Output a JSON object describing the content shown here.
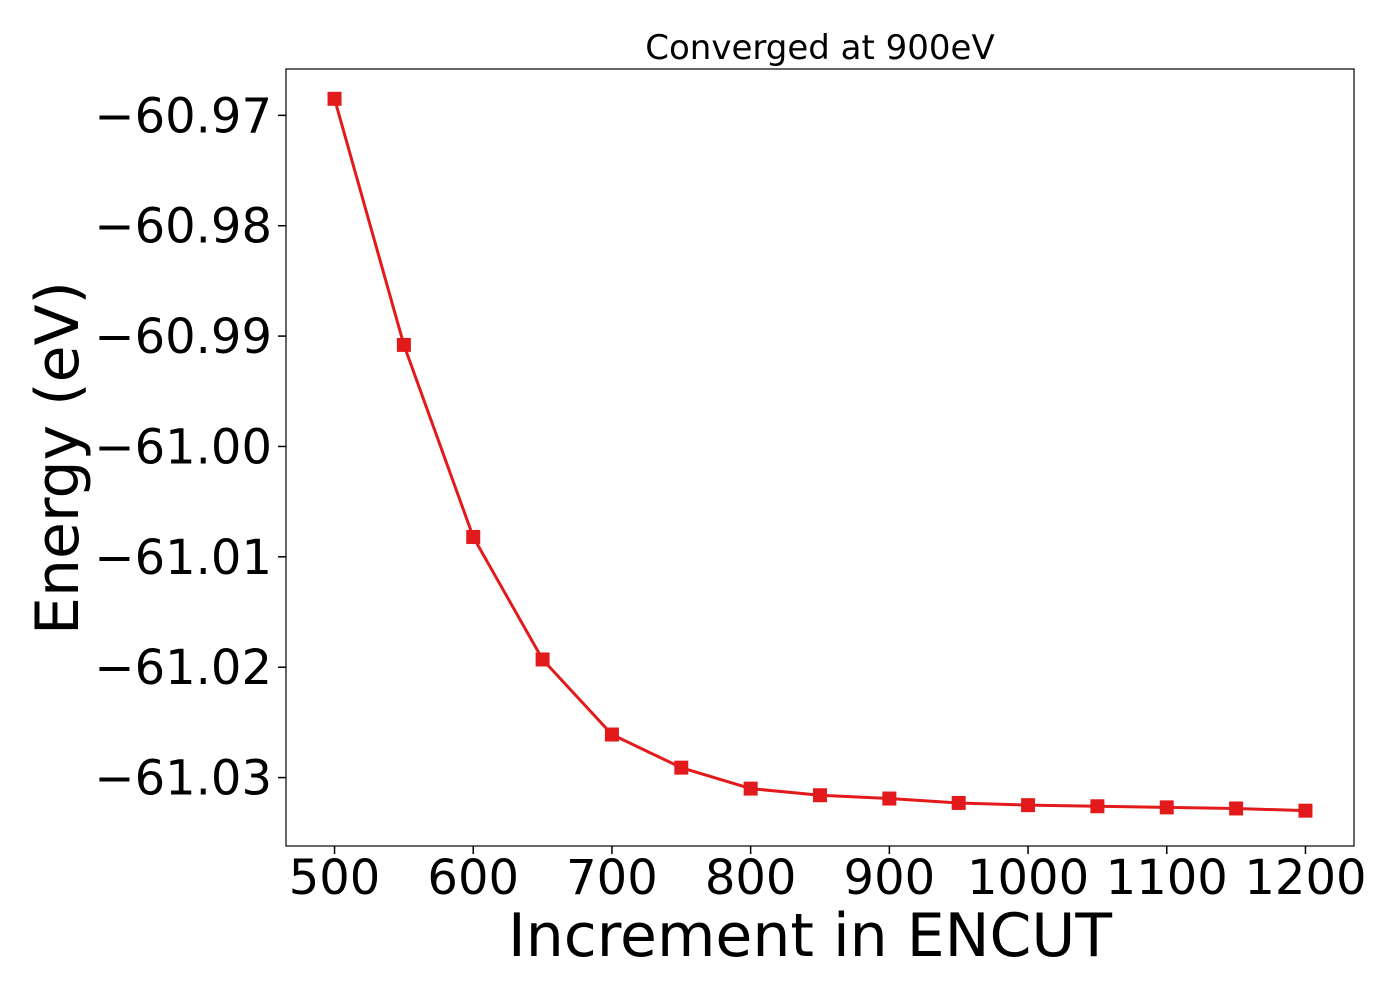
{
  "chart_data": {
    "type": "line",
    "title": "Converged at 900eV",
    "xlabel": "Increment in ENCUT",
    "ylabel": "Energy (eV)",
    "xlim": [
      465,
      1235
    ],
    "ylim": [
      -61.0362,
      -60.9658
    ],
    "x_ticks": [
      500,
      600,
      700,
      800,
      900,
      1000,
      1100,
      1200
    ],
    "x_tick_labels": [
      "500",
      "600",
      "700",
      "800",
      "900",
      "1000",
      "1100",
      "1200"
    ],
    "y_ticks": [
      -60.97,
      -60.98,
      -60.99,
      -61.0,
      -61.01,
      -61.02,
      -61.03
    ],
    "y_tick_labels": [
      "−60.97",
      "−60.98",
      "−60.99",
      "−61.00",
      "−61.01",
      "−61.02",
      "−61.03"
    ],
    "grid": false,
    "series": [
      {
        "color": "#e31a1c",
        "marker": "square",
        "x": [
          500,
          550,
          600,
          650,
          700,
          750,
          800,
          850,
          900,
          950,
          1000,
          1050,
          1100,
          1150,
          1200
        ],
        "y": [
          -60.9685,
          -60.9908,
          -61.0082,
          -61.0193,
          -61.0261,
          -61.0291,
          -61.031,
          -61.0316,
          -61.0319,
          -61.0323,
          -61.0325,
          -61.0326,
          -61.0327,
          -61.0328,
          -61.033
        ]
      }
    ]
  }
}
